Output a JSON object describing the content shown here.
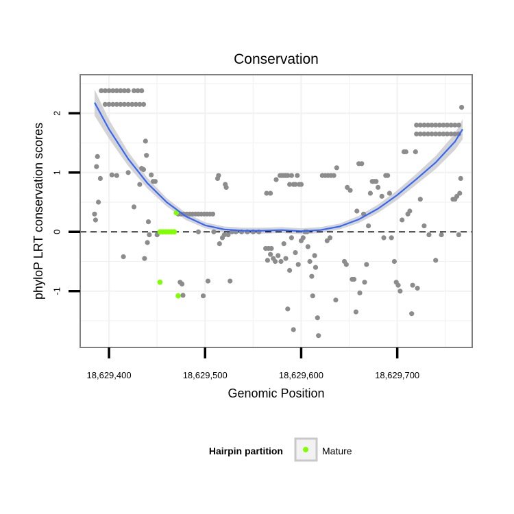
{
  "chart_data": {
    "type": "scatter",
    "title": "Conservation",
    "xlabel": "Genomic Position",
    "ylabel": "phyloP LRT conservation scores",
    "xlim": [
      18629370,
      18629778
    ],
    "ylim": [
      -1.95,
      2.65
    ],
    "x_ticks": [
      {
        "value": 18629400,
        "label": "18,629,400"
      },
      {
        "value": 18629500,
        "label": "18,629,500"
      },
      {
        "value": 18629600,
        "label": "18,629,600"
      },
      {
        "value": 18629700,
        "label": "18,629,700"
      }
    ],
    "y_ticks": [
      {
        "value": 2,
        "label": "2"
      },
      {
        "value": 1,
        "label": "1"
      },
      {
        "value": 0,
        "label": "0"
      },
      {
        "value": -1,
        "label": "-1"
      }
    ],
    "grid": true,
    "reference_line": {
      "y": 0,
      "style": "dashed"
    },
    "legend": {
      "title": "Hairpin partition",
      "placement": "bottom",
      "entries": [
        {
          "name": "Mature",
          "color": "#7fff00"
        }
      ]
    },
    "colors": {
      "points": "#8c8c8c",
      "mature": "#7fff00",
      "smooth_line": "#3366ff",
      "ribbon": "#cccccc",
      "panel_bg": "#ffffff",
      "grid": "#f2f2f2",
      "border": "#7f7f7f"
    },
    "series": [
      {
        "points": [
          [
            18629385,
            0.3
          ],
          [
            18629386,
            0.2
          ],
          [
            18629387,
            1.1
          ],
          [
            18629388,
            1.27
          ],
          [
            18629389,
            0.5
          ],
          [
            18629391,
            0.9
          ],
          [
            18629396,
            2.15
          ],
          [
            18629400,
            2.15
          ],
          [
            18629404,
            2.15
          ],
          [
            18629408,
            2.15
          ],
          [
            18629412,
            2.15
          ],
          [
            18629416,
            2.15
          ],
          [
            18629420,
            2.15
          ],
          [
            18629424,
            2.15
          ],
          [
            18629428,
            2.15
          ],
          [
            18629432,
            2.15
          ],
          [
            18629436,
            2.15
          ],
          [
            18629392,
            2.38
          ],
          [
            18629396,
            2.38
          ],
          [
            18629400,
            2.38
          ],
          [
            18629404,
            2.38
          ],
          [
            18629408,
            2.38
          ],
          [
            18629412,
            2.38
          ],
          [
            18629416,
            2.38
          ],
          [
            18629420,
            2.38
          ],
          [
            18629426,
            2.38
          ],
          [
            18629430,
            2.38
          ],
          [
            18629434,
            2.38
          ],
          [
            18629403,
            0.96
          ],
          [
            18629408,
            0.95
          ],
          [
            18629415,
            -0.42
          ],
          [
            18629420,
            1.0
          ],
          [
            18629426,
            0.42
          ],
          [
            18629432,
            0.8
          ],
          [
            18629434,
            1.07
          ],
          [
            18629436,
            1.05
          ],
          [
            18629437,
            -0.45
          ],
          [
            18629438,
            1.53
          ],
          [
            18629439,
            1.29
          ],
          [
            18629440,
            -0.18
          ],
          [
            18629441,
            0.17
          ],
          [
            18629442,
            -0.05
          ],
          [
            18629444,
            0.96
          ],
          [
            18629446,
            0.85
          ],
          [
            18629448,
            0.85
          ],
          [
            18629450,
            -0.05
          ],
          [
            18629472,
            0.3
          ],
          [
            18629475,
            0.3
          ],
          [
            18629478,
            0.3
          ],
          [
            18629481,
            0.3
          ],
          [
            18629484,
            0.3
          ],
          [
            18629487,
            0.3
          ],
          [
            18629490,
            0.3
          ],
          [
            18629493,
            0.3
          ],
          [
            18629496,
            0.3
          ],
          [
            18629499,
            0.3
          ],
          [
            18629502,
            0.3
          ],
          [
            18629505,
            0.3
          ],
          [
            18629508,
            0.3
          ],
          [
            18629474,
            -0.85
          ],
          [
            18629476,
            -0.88
          ],
          [
            18629477,
            -1.07
          ],
          [
            18629493,
            0.0
          ],
          [
            18629498,
            -1.08
          ],
          [
            18629503,
            -0.83
          ],
          [
            18629509,
            0.0
          ],
          [
            18629513,
            0.9
          ],
          [
            18629514,
            0.95
          ],
          [
            18629515,
            -0.2
          ],
          [
            18629518,
            -0.1
          ],
          [
            18629520,
            -0.05
          ],
          [
            18629521,
            0.8
          ],
          [
            18629522,
            0.75
          ],
          [
            18629524,
            -0.05
          ],
          [
            18629526,
            -0.83
          ],
          [
            18629528,
            0.0
          ],
          [
            18629532,
            0.0
          ],
          [
            18629538,
            0.0
          ],
          [
            18629544,
            0.0
          ],
          [
            18629550,
            0.0
          ],
          [
            18629556,
            0.0
          ],
          [
            18629564,
            0.65
          ],
          [
            18629568,
            0.65
          ],
          [
            18629563,
            -0.28
          ],
          [
            18629566,
            -0.28
          ],
          [
            18629569,
            -0.28
          ],
          [
            18629565,
            -0.48
          ],
          [
            18629568,
            -0.38
          ],
          [
            18629571,
            -0.45
          ],
          [
            18629573,
            -0.5
          ],
          [
            18629574,
            0.88
          ],
          [
            18629576,
            -0.4
          ],
          [
            18629578,
            0.95
          ],
          [
            18629580,
            0.95
          ],
          [
            18629582,
            0.95
          ],
          [
            18629584,
            0.95
          ],
          [
            18629586,
            0.95
          ],
          [
            18629588,
            0.8
          ],
          [
            18629590,
            0.95
          ],
          [
            18629592,
            0.8
          ],
          [
            18629594,
            0.8
          ],
          [
            18629596,
            0.95
          ],
          [
            18629598,
            0.8
          ],
          [
            18629600,
            0.8
          ],
          [
            18629579,
            -0.5
          ],
          [
            18629582,
            -0.2
          ],
          [
            18629584,
            -0.45
          ],
          [
            18629586,
            -1.3
          ],
          [
            18629588,
            -0.65
          ],
          [
            18629590,
            -0.1
          ],
          [
            18629592,
            -1.65
          ],
          [
            18629594,
            -0.35
          ],
          [
            18629597,
            -0.55
          ],
          [
            18629600,
            -0.15
          ],
          [
            18629602,
            -0.1
          ],
          [
            18629604,
            0.0
          ],
          [
            18629606,
            0.0
          ],
          [
            18629607,
            -0.25
          ],
          [
            18629609,
            -0.5
          ],
          [
            18629611,
            -0.75
          ],
          [
            18629612,
            -1.08
          ],
          [
            18629614,
            -0.4
          ],
          [
            18629615,
            -0.6
          ],
          [
            18629617,
            -1.45
          ],
          [
            18629618,
            -1.75
          ],
          [
            18629622,
            0.95
          ],
          [
            18629625,
            0.95
          ],
          [
            18629628,
            0.95
          ],
          [
            18629631,
            0.95
          ],
          [
            18629634,
            0.95
          ],
          [
            18629637,
            1.08
          ],
          [
            18629636,
            -1.15
          ],
          [
            18629627,
            -0.15
          ],
          [
            18629630,
            -0.1
          ],
          [
            18629645,
            -0.5
          ],
          [
            18629647,
            -0.55
          ],
          [
            18629648,
            0.75
          ],
          [
            18629651,
            0.7
          ],
          [
            18629653,
            -0.8
          ],
          [
            18629655,
            -0.8
          ],
          [
            18629657,
            -1.35
          ],
          [
            18629658,
            0.35
          ],
          [
            18629660,
            1.15
          ],
          [
            18629661,
            -1.03
          ],
          [
            18629663,
            1.15
          ],
          [
            18629665,
            0.3
          ],
          [
            18629666,
            -0.85
          ],
          [
            18629668,
            -0.55
          ],
          [
            18629670,
            0.1
          ],
          [
            18629672,
            0.65
          ],
          [
            18629674,
            0.85
          ],
          [
            18629676,
            0.85
          ],
          [
            18629678,
            0.85
          ],
          [
            18629680,
            0.75
          ],
          [
            18629684,
            0.6
          ],
          [
            18629686,
            -0.1
          ],
          [
            18629688,
            0.95
          ],
          [
            18629690,
            0.95
          ],
          [
            18629692,
            0.65
          ],
          [
            18629694,
            -0.1
          ],
          [
            18629697,
            -0.5
          ],
          [
            18629699,
            -0.85
          ],
          [
            18629701,
            -0.9
          ],
          [
            18629703,
            -1.0
          ],
          [
            18629705,
            0.2
          ],
          [
            18629707,
            1.35
          ],
          [
            18629709,
            1.35
          ],
          [
            18629711,
            0.3
          ],
          [
            18629713,
            0.35
          ],
          [
            18629715,
            -1.38
          ],
          [
            18629716,
            -0.9
          ],
          [
            18629719,
            1.35
          ],
          [
            18629721,
            -0.95
          ],
          [
            18629724,
            0.55
          ],
          [
            18629728,
            0.1
          ],
          [
            18629733,
            -0.05
          ],
          [
            18629740,
            -0.48
          ],
          [
            18629746,
            -0.05
          ],
          [
            18629758,
            0.55
          ],
          [
            18629760,
            0.55
          ],
          [
            18629762,
            0.6
          ],
          [
            18629764,
            -0.05
          ],
          [
            18629765,
            0.65
          ],
          [
            18629766,
            0.9
          ],
          [
            18629767,
            2.1
          ],
          [
            18629720,
            1.65
          ],
          [
            18629724,
            1.65
          ],
          [
            18629728,
            1.65
          ],
          [
            18629732,
            1.65
          ],
          [
            18629736,
            1.65
          ],
          [
            18629740,
            1.65
          ],
          [
            18629744,
            1.65
          ],
          [
            18629748,
            1.65
          ],
          [
            18629752,
            1.65
          ],
          [
            18629756,
            1.65
          ],
          [
            18629760,
            1.65
          ],
          [
            18629764,
            1.65
          ],
          [
            18629720,
            1.8
          ],
          [
            18629724,
            1.8
          ],
          [
            18629728,
            1.8
          ],
          [
            18629732,
            1.8
          ],
          [
            18629736,
            1.8
          ],
          [
            18629740,
            1.8
          ],
          [
            18629744,
            1.8
          ],
          [
            18629748,
            1.8
          ],
          [
            18629752,
            1.8
          ],
          [
            18629756,
            1.8
          ],
          [
            18629760,
            1.8
          ],
          [
            18629764,
            1.8
          ]
        ]
      },
      {
        "name": "Mature",
        "points": [
          [
            18629453,
            0.0
          ],
          [
            18629456,
            0.0
          ],
          [
            18629459,
            0.0
          ],
          [
            18629462,
            0.0
          ],
          [
            18629465,
            0.0
          ],
          [
            18629468,
            0.0
          ],
          [
            18629470,
            0.32
          ],
          [
            18629453,
            -0.85
          ],
          [
            18629472,
            -1.08
          ]
        ]
      }
    ],
    "smooth": {
      "x": [
        18629385,
        18629400,
        18629420,
        18629440,
        18629460,
        18629480,
        18629500,
        18629520,
        18629540,
        18629560,
        18629580,
        18629600,
        18629620,
        18629640,
        18629660,
        18629680,
        18629700,
        18629720,
        18629740,
        18629760,
        18629768
      ],
      "y": [
        2.18,
        1.73,
        1.23,
        0.82,
        0.5,
        0.26,
        0.11,
        0.04,
        0.02,
        0.02,
        0.03,
        0.01,
        0.03,
        0.09,
        0.21,
        0.39,
        0.62,
        0.89,
        1.17,
        1.52,
        1.73
      ],
      "band": [
        0.22,
        0.16,
        0.12,
        0.09,
        0.07,
        0.06,
        0.05,
        0.05,
        0.05,
        0.05,
        0.05,
        0.05,
        0.05,
        0.05,
        0.06,
        0.07,
        0.08,
        0.09,
        0.11,
        0.14,
        0.17
      ]
    }
  }
}
